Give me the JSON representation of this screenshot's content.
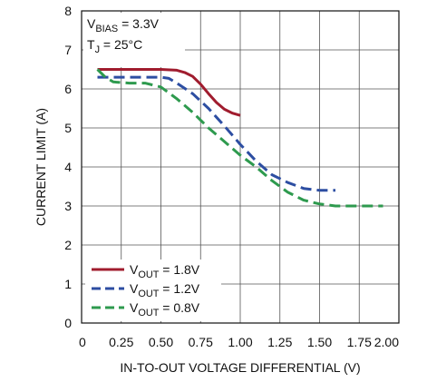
{
  "chart_data": {
    "type": "line",
    "xlabel": "IN-TO-OUT VOLTAGE DIFFERENTIAL (V)",
    "ylabel": "CURRENT LIMIT (A)",
    "xlim": [
      0,
      2.0
    ],
    "ylim": [
      0,
      8
    ],
    "grid": true,
    "legend_position": "bottom-left",
    "x_ticks": [
      "0",
      "0.25",
      "0.50",
      "0.75",
      "1.00",
      "1.25",
      "1.50",
      "1.75",
      "2.00"
    ],
    "y_ticks": [
      "0",
      "1",
      "2",
      "3",
      "4",
      "5",
      "6",
      "7",
      "8"
    ],
    "conditions": [
      {
        "main": "V",
        "sub": "BIAS",
        "rest": " = 3.3V"
      },
      {
        "main": "T",
        "sub": "J",
        "rest": " = 25°C"
      }
    ],
    "series": [
      {
        "name": "VOUT = 1.8V",
        "label_main": "V",
        "label_sub": "OUT",
        "label_rest": " = 1.8V",
        "color": "#a01c2e",
        "dash": "solid",
        "x": [
          0.1,
          0.3,
          0.5,
          0.6,
          0.65,
          0.7,
          0.75,
          0.8,
          0.85,
          0.9,
          0.95,
          1.0
        ],
        "y": [
          6.5,
          6.5,
          6.5,
          6.48,
          6.42,
          6.32,
          6.12,
          5.88,
          5.65,
          5.48,
          5.38,
          5.32
        ]
      },
      {
        "name": "VOUT = 1.2V",
        "label_main": "V",
        "label_sub": "OUT",
        "label_rest": " = 1.2V",
        "color": "#2d4ea2",
        "dash": "dashed",
        "x": [
          0.1,
          0.3,
          0.5,
          0.55,
          0.6,
          0.7,
          0.8,
          0.9,
          1.0,
          1.1,
          1.2,
          1.3,
          1.4,
          1.5,
          1.6
        ],
        "y": [
          6.3,
          6.3,
          6.3,
          6.27,
          6.15,
          5.88,
          5.5,
          5.05,
          4.58,
          4.15,
          3.8,
          3.6,
          3.45,
          3.4,
          3.4
        ]
      },
      {
        "name": "VOUT = 0.8V",
        "label_main": "V",
        "label_sub": "OUT",
        "label_rest": " = 0.8V",
        "color": "#2e9a4e",
        "dash": "dashed",
        "x": [
          0.1,
          0.15,
          0.2,
          0.3,
          0.4,
          0.5,
          0.6,
          0.7,
          0.8,
          0.9,
          1.0,
          1.1,
          1.2,
          1.3,
          1.4,
          1.5,
          1.6,
          1.7,
          1.8,
          1.9
        ],
        "y": [
          6.5,
          6.3,
          6.18,
          6.15,
          6.15,
          6.05,
          5.75,
          5.4,
          5.0,
          4.65,
          4.3,
          4.0,
          3.65,
          3.35,
          3.15,
          3.05,
          3.0,
          3.0,
          3.0,
          3.0
        ]
      }
    ]
  }
}
